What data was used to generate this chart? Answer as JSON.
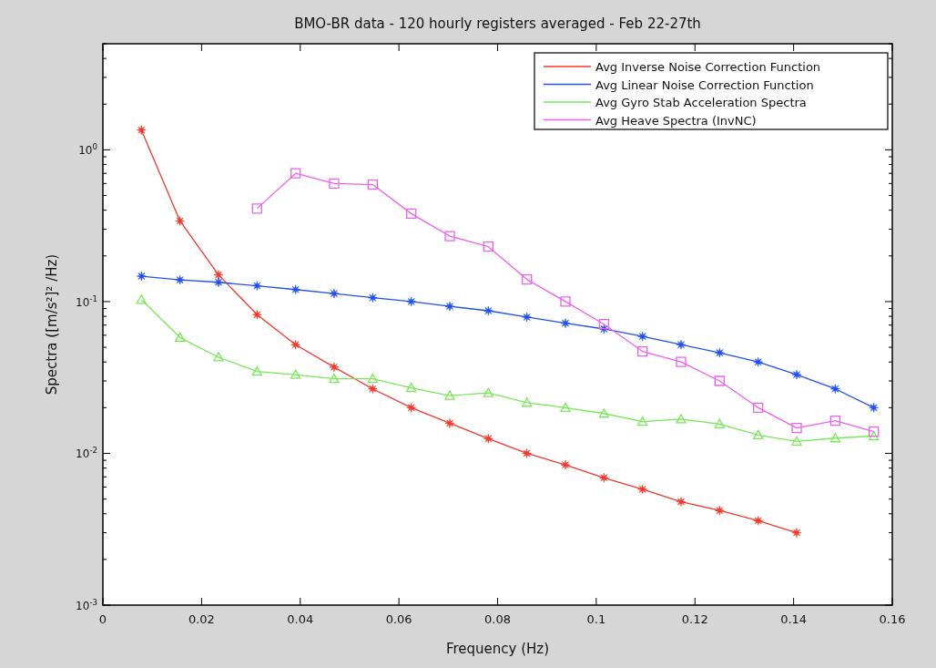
{
  "chart_data": {
    "type": "line",
    "title": "BMO-BR data - 120 hourly registers averaged - Feb 22-27th",
    "xlabel": "Frequency (Hz)",
    "ylabel": "Spectra ([m/s²]² /Hz)",
    "log": "y",
    "grid": false,
    "legend": "top right",
    "line_style": "solid",
    "xlim": [
      0,
      0.16
    ],
    "xticks": [
      {
        "value": 0,
        "label": "0"
      },
      0.02,
      0.04,
      0.06,
      0.08,
      {
        "value": 0.1,
        "label": "0.1"
      },
      0.12,
      0.14,
      0.16
    ],
    "ylim": [
      0.001,
      5
    ],
    "yticks": [
      {
        "value": 0.001,
        "label": "10$^{-3}$"
      },
      {
        "value": 0.002,
        "label": null
      },
      {
        "value": 0.003,
        "label": null
      },
      {
        "value": 0.004,
        "label": null
      },
      {
        "value": 0.005,
        "label": null
      },
      {
        "value": 0.006,
        "label": null
      },
      {
        "value": 0.007,
        "label": null
      },
      {
        "value": 0.008,
        "label": null
      },
      {
        "value": 0.009,
        "label": null
      },
      {
        "value": 0.01,
        "label": "10$^{-2}$"
      },
      {
        "value": 0.02,
        "label": null
      },
      {
        "value": 0.03,
        "label": null
      },
      {
        "value": 0.04,
        "label": null
      },
      {
        "value": 0.05,
        "label": null
      },
      {
        "value": 0.06,
        "label": null
      },
      {
        "value": 0.07,
        "label": null
      },
      {
        "value": 0.08,
        "label": null
      },
      {
        "value": 0.09,
        "label": null
      },
      {
        "value": 0.1,
        "label": "10$^{-1}$"
      },
      {
        "value": 0.2,
        "label": null
      },
      {
        "value": 0.3,
        "label": null
      },
      {
        "value": 0.4,
        "label": null
      },
      {
        "value": 0.5,
        "label": null
      },
      {
        "value": 0.6,
        "label": null
      },
      {
        "value": 0.7,
        "label": null
      },
      {
        "value": 0.8,
        "label": null
      },
      {
        "value": 0.9,
        "label": null
      },
      {
        "value": 1,
        "label": "10$^{0}$"
      },
      {
        "value": 2,
        "label": null
      },
      {
        "value": 3,
        "label": null
      },
      {
        "value": 4,
        "label": null
      },
      {
        "value": 5,
        "label": null
      }
    ],
    "series": [
      {
        "name": "Avg Inverse Noise Correction Function",
        "color": "#f03a2e",
        "marker": "star",
        "x": [
          0.0078125,
          0.015625,
          0.0234375,
          0.03125,
          0.0390625,
          0.046875,
          0.0546875,
          0.0625,
          0.0703125,
          0.078125,
          0.0859375,
          0.09375,
          0.1015625,
          0.109375,
          0.1171875,
          0.125,
          0.1328125,
          0.140625
        ],
        "values": [
          1.35,
          0.34,
          0.15,
          0.082,
          0.052,
          0.037,
          0.0266,
          0.02,
          0.0158,
          0.0125,
          0.01,
          0.0084,
          0.0069,
          0.0058,
          0.0048,
          0.0042,
          0.0036,
          0.003
        ]
      },
      {
        "name": "Avg Linear Noise Correction Function",
        "color": "#2050f0",
        "marker": "star",
        "x": [
          0.0078125,
          0.015625,
          0.0234375,
          0.03125,
          0.0390625,
          0.046875,
          0.0546875,
          0.0625,
          0.0703125,
          0.078125,
          0.0859375,
          0.09375,
          0.1015625,
          0.109375,
          0.1171875,
          0.125,
          0.1328125,
          0.140625,
          0.1484375,
          0.15625
        ],
        "values": [
          0.147,
          0.139,
          0.134,
          0.127,
          0.12,
          0.113,
          0.106,
          0.1,
          0.093,
          0.087,
          0.079,
          0.072,
          0.066,
          0.059,
          0.052,
          0.046,
          0.04,
          0.033,
          0.0266,
          0.02
        ]
      },
      {
        "name": "Avg Gyro Stab Acceleration Spectra",
        "color": "#78e858",
        "marker": "triangle",
        "x": [
          0.0078125,
          0.015625,
          0.0234375,
          0.03125,
          0.0390625,
          0.046875,
          0.0546875,
          0.0625,
          0.0703125,
          0.078125,
          0.0859375,
          0.09375,
          0.1015625,
          0.109375,
          0.1171875,
          0.125,
          0.1328125,
          0.140625,
          0.1484375,
          0.15625
        ],
        "values": [
          0.103,
          0.058,
          0.043,
          0.0346,
          0.033,
          0.031,
          0.031,
          0.027,
          0.024,
          0.025,
          0.0216,
          0.02,
          0.0183,
          0.0162,
          0.0168,
          0.0156,
          0.0132,
          0.012,
          0.0126,
          0.013
        ]
      },
      {
        "name": "Avg Heave Spectra (InvNC)",
        "color": "#f060f0",
        "marker": "square",
        "x": [
          0.03125,
          0.0390625,
          0.046875,
          0.0546875,
          0.0625,
          0.0703125,
          0.078125,
          0.0859375,
          0.09375,
          0.1015625,
          0.109375,
          0.1171875,
          0.125,
          0.1328125,
          0.140625,
          0.1484375,
          0.15625
        ],
        "values": [
          0.41,
          0.7,
          0.6,
          0.59,
          0.38,
          0.27,
          0.23,
          0.14,
          0.1,
          0.071,
          0.047,
          0.04,
          0.03,
          0.02,
          0.0147,
          0.0164,
          0.0139
        ]
      }
    ]
  }
}
